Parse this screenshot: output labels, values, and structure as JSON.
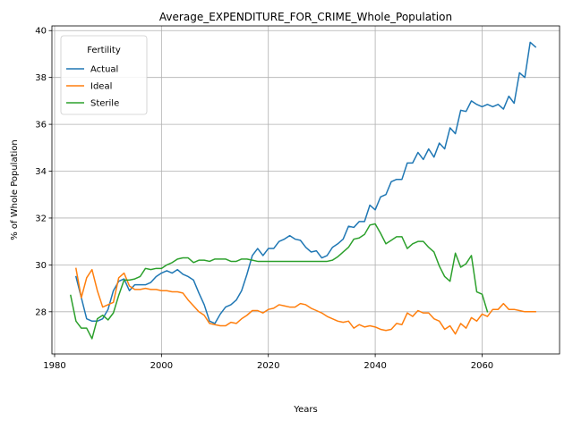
{
  "chart_data": {
    "type": "line",
    "title": "Average_EXPENDITURE_FOR_CRIME_Whole_Population",
    "xlabel": "Years",
    "ylabel": "% of Whole Population",
    "xlim": [
      1979.5,
      2074.5
    ],
    "ylim": [
      26.2,
      40.2
    ],
    "xticks": [
      1980,
      2000,
      2020,
      2040,
      2060
    ],
    "yticks": [
      28,
      30,
      32,
      34,
      36,
      38,
      40
    ],
    "grid": true,
    "legend": {
      "title": "Fertility",
      "position": "top-left"
    },
    "series": [
      {
        "name": "Actual",
        "color": "#1f77b4",
        "x": [
          1984,
          1985,
          1986,
          1987,
          1988,
          1989,
          1990,
          1991,
          1992,
          1993,
          1994,
          1995,
          1996,
          1997,
          1998,
          1999,
          2000,
          2001,
          2002,
          2003,
          2004,
          2005,
          2006,
          2007,
          2008,
          2009,
          2010,
          2011,
          2012,
          2013,
          2014,
          2015,
          2016,
          2017,
          2018,
          2019,
          2020,
          2021,
          2022,
          2023,
          2024,
          2025,
          2026,
          2027,
          2028,
          2029,
          2030,
          2031,
          2032,
          2033,
          2034,
          2035,
          2036,
          2037,
          2038,
          2039,
          2040,
          2041,
          2042,
          2043,
          2044,
          2045,
          2046,
          2047,
          2048,
          2049,
          2050,
          2051,
          2052,
          2053,
          2054,
          2055,
          2056,
          2057,
          2058,
          2059,
          2060,
          2061,
          2062,
          2063,
          2064,
          2065,
          2066,
          2067,
          2068,
          2069,
          2070
        ],
        "values": [
          29.5,
          28.6,
          27.7,
          27.6,
          27.6,
          27.7,
          28.1,
          28.9,
          29.3,
          29.4,
          28.9,
          29.15,
          29.15,
          29.15,
          29.25,
          29.5,
          29.65,
          29.75,
          29.65,
          29.8,
          29.6,
          29.5,
          29.35,
          28.8,
          28.3,
          27.6,
          27.5,
          27.9,
          28.2,
          28.3,
          28.5,
          28.9,
          29.6,
          30.4,
          30.7,
          30.4,
          30.7,
          30.7,
          31.0,
          31.1,
          31.25,
          31.1,
          31.05,
          30.75,
          30.55,
          30.6,
          30.3,
          30.4,
          30.75,
          30.9,
          31.1,
          31.65,
          31.6,
          31.85,
          31.85,
          32.55,
          32.35,
          32.9,
          33.0,
          33.55,
          33.65,
          33.65,
          34.35,
          34.35,
          34.8,
          34.5,
          34.95,
          34.6,
          35.2,
          34.95,
          35.85,
          35.6,
          36.6,
          36.55,
          37.0,
          36.85,
          36.75,
          36.85,
          36.75,
          36.85,
          36.65,
          37.2,
          36.9,
          38.2,
          38.0,
          39.5,
          39.3
        ]
      },
      {
        "name": "Ideal",
        "color": "#ff7f0e",
        "x": [
          1984,
          1985,
          1986,
          1987,
          1988,
          1989,
          1990,
          1991,
          1992,
          1993,
          1994,
          1995,
          1996,
          1997,
          1998,
          1999,
          2000,
          2001,
          2002,
          2003,
          2004,
          2005,
          2006,
          2007,
          2008,
          2009,
          2010,
          2011,
          2012,
          2013,
          2014,
          2015,
          2016,
          2017,
          2018,
          2019,
          2020,
          2021,
          2022,
          2023,
          2024,
          2025,
          2026,
          2027,
          2028,
          2029,
          2030,
          2031,
          2032,
          2033,
          2034,
          2035,
          2036,
          2037,
          2038,
          2039,
          2040,
          2041,
          2042,
          2043,
          2044,
          2045,
          2046,
          2047,
          2048,
          2049,
          2050,
          2051,
          2052,
          2053,
          2054,
          2055,
          2056,
          2057,
          2058,
          2059,
          2060,
          2061,
          2062,
          2063,
          2064,
          2065,
          2066,
          2067,
          2068,
          2069,
          2070
        ],
        "values": [
          29.85,
          28.6,
          29.45,
          29.8,
          28.9,
          28.2,
          28.3,
          28.4,
          29.45,
          29.65,
          29.1,
          28.95,
          28.95,
          29.0,
          28.95,
          28.95,
          28.9,
          28.9,
          28.85,
          28.85,
          28.8,
          28.5,
          28.25,
          28.0,
          27.85,
          27.5,
          27.45,
          27.4,
          27.4,
          27.55,
          27.5,
          27.7,
          27.85,
          28.05,
          28.05,
          27.95,
          28.1,
          28.15,
          28.3,
          28.25,
          28.2,
          28.2,
          28.35,
          28.3,
          28.15,
          28.05,
          27.95,
          27.8,
          27.7,
          27.6,
          27.55,
          27.6,
          27.3,
          27.45,
          27.35,
          27.4,
          27.35,
          27.25,
          27.2,
          27.25,
          27.5,
          27.45,
          27.95,
          27.8,
          28.05,
          27.95,
          27.95,
          27.7,
          27.6,
          27.25,
          27.4,
          27.05,
          27.5,
          27.3,
          27.75,
          27.6,
          27.9,
          27.8,
          28.1,
          28.1,
          28.35,
          28.1,
          28.1,
          28.05,
          28.0,
          28.0,
          28.0
        ]
      },
      {
        "name": "Sterile",
        "color": "#2ca02c",
        "x": [
          1983,
          1984,
          1985,
          1986,
          1987,
          1988,
          1989,
          1990,
          1991,
          1992,
          1993,
          1994,
          1995,
          1996,
          1997,
          1998,
          1999,
          2000,
          2001,
          2002,
          2003,
          2004,
          2005,
          2006,
          2007,
          2008,
          2009,
          2010,
          2011,
          2012,
          2013,
          2014,
          2015,
          2016,
          2017,
          2018,
          2019,
          2020,
          2021,
          2022,
          2023,
          2024,
          2025,
          2026,
          2027,
          2028,
          2029,
          2030,
          2031,
          2032,
          2033,
          2034,
          2035,
          2036,
          2037,
          2038,
          2039,
          2040,
          2041,
          2042,
          2043,
          2044,
          2045,
          2046,
          2047,
          2048,
          2049,
          2050,
          2051,
          2052,
          2053,
          2054,
          2055,
          2056,
          2057,
          2058,
          2059,
          2060,
          2061
        ],
        "values": [
          28.7,
          27.6,
          27.3,
          27.3,
          26.85,
          27.7,
          27.85,
          27.65,
          27.95,
          28.7,
          29.35,
          29.35,
          29.4,
          29.5,
          29.85,
          29.8,
          29.85,
          29.85,
          30.0,
          30.1,
          30.25,
          30.3,
          30.3,
          30.1,
          30.2,
          30.2,
          30.15,
          30.25,
          30.25,
          30.25,
          30.15,
          30.15,
          30.25,
          30.25,
          30.2,
          30.15,
          30.15,
          30.15,
          30.15,
          30.15,
          30.15,
          30.15,
          30.15,
          30.15,
          30.15,
          30.15,
          30.15,
          30.15,
          30.15,
          30.2,
          30.35,
          30.55,
          30.75,
          31.1,
          31.15,
          31.3,
          31.7,
          31.75,
          31.35,
          30.9,
          31.05,
          31.2,
          31.2,
          30.7,
          30.9,
          31.0,
          31.0,
          30.75,
          30.55,
          29.95,
          29.5,
          29.3,
          30.5,
          29.9,
          30.05,
          30.4,
          28.85,
          28.75,
          28.0
        ]
      }
    ]
  }
}
